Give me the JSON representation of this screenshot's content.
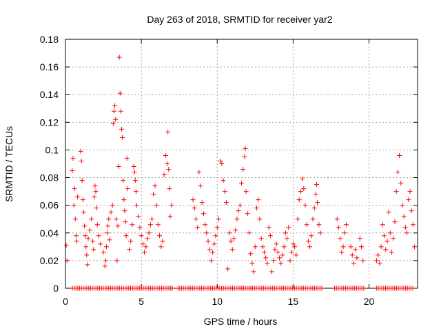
{
  "chart_data": {
    "type": "scatter",
    "title": "Day 263 of 2018, SRMTID for receiver yar2",
    "xlabel": "GPS time / hours",
    "ylabel": "SRMTID / TECUs",
    "xlim": [
      0,
      23.2
    ],
    "ylim": [
      0,
      0.18
    ],
    "xticks": [
      0,
      5,
      10,
      15,
      20
    ],
    "xtick_labels": [
      "0",
      "5",
      "10",
      "15",
      "20"
    ],
    "yticks": [
      0,
      0.02,
      0.04,
      0.06,
      0.08,
      0.1,
      0.12,
      0.14,
      0.16,
      0.18
    ],
    "ytick_labels": [
      "0",
      "0.02",
      "0.04",
      "0.06",
      "0.08",
      "0.1",
      "0.12",
      "0.14",
      "0.16",
      "0.18"
    ],
    "grid": true,
    "marker": "+",
    "color": "#ff0000",
    "series": [
      {
        "name": "SRMTID",
        "points": [
          [
            0.05,
            0.031
          ],
          [
            0.1,
            0.02
          ],
          [
            0.45,
            0.085
          ],
          [
            0.5,
            0.094
          ],
          [
            0.55,
            0.06
          ],
          [
            0.6,
            0.072
          ],
          [
            0.65,
            0.05
          ],
          [
            0.7,
            0.038
          ],
          [
            0.75,
            0.034
          ],
          [
            0.8,
            0.066
          ],
          [
            1.0,
            0.099
          ],
          [
            1.05,
            0.092
          ],
          [
            1.1,
            0.078
          ],
          [
            1.15,
            0.064
          ],
          [
            1.2,
            0.055
          ],
          [
            1.25,
            0.045
          ],
          [
            1.3,
            0.038
          ],
          [
            1.35,
            0.03
          ],
          [
            1.4,
            0.024
          ],
          [
            1.45,
            0.017
          ],
          [
            1.5,
            0.036
          ],
          [
            1.6,
            0.042
          ],
          [
            1.7,
            0.05
          ],
          [
            1.8,
            0.034
          ],
          [
            1.85,
            0.028
          ],
          [
            1.9,
            0.066
          ],
          [
            1.95,
            0.074
          ],
          [
            2.0,
            0.07
          ],
          [
            2.05,
            0.058
          ],
          [
            2.1,
            0.046
          ],
          [
            2.2,
            0.038
          ],
          [
            2.3,
            0.032
          ],
          [
            2.5,
            0.026
          ],
          [
            2.6,
            0.016
          ],
          [
            2.65,
            0.02
          ],
          [
            2.7,
            0.03
          ],
          [
            2.75,
            0.04
          ],
          [
            2.8,
            0.045
          ],
          [
            2.85,
            0.05
          ],
          [
            2.9,
            0.035
          ],
          [
            3.0,
            0.055
          ],
          [
            3.1,
            0.06
          ],
          [
            3.15,
            0.119
          ],
          [
            3.2,
            0.128
          ],
          [
            3.25,
            0.132
          ],
          [
            3.3,
            0.122
          ],
          [
            3.35,
            0.05
          ],
          [
            3.4,
            0.02
          ],
          [
            3.45,
            0.045
          ],
          [
            3.5,
            0.088
          ],
          [
            3.55,
            0.167
          ],
          [
            3.6,
            0.141
          ],
          [
            3.65,
            0.128
          ],
          [
            3.7,
            0.115
          ],
          [
            3.75,
            0.109
          ],
          [
            3.8,
            0.078
          ],
          [
            3.85,
            0.064
          ],
          [
            3.9,
            0.056
          ],
          [
            3.95,
            0.048
          ],
          [
            4.0,
            0.038
          ],
          [
            4.05,
            0.094
          ],
          [
            4.1,
            0.072
          ],
          [
            4.2,
            0.028
          ],
          [
            4.3,
            0.034
          ],
          [
            4.4,
            0.046
          ],
          [
            4.5,
            0.088
          ],
          [
            4.55,
            0.084
          ],
          [
            4.6,
            0.078
          ],
          [
            4.65,
            0.07
          ],
          [
            4.7,
            0.06
          ],
          [
            4.8,
            0.052
          ],
          [
            4.9,
            0.044
          ],
          [
            5.0,
            0.038
          ],
          [
            5.1,
            0.032
          ],
          [
            5.2,
            0.026
          ],
          [
            5.3,
            0.03
          ],
          [
            5.4,
            0.036
          ],
          [
            5.5,
            0.04
          ],
          [
            5.6,
            0.046
          ],
          [
            5.7,
            0.05
          ],
          [
            5.8,
            0.068
          ],
          [
            5.9,
            0.074
          ],
          [
            6.0,
            0.06
          ],
          [
            6.1,
            0.046
          ],
          [
            6.2,
            0.038
          ],
          [
            6.3,
            0.03
          ],
          [
            6.4,
            0.034
          ],
          [
            6.5,
            0.082
          ],
          [
            6.6,
            0.096
          ],
          [
            6.7,
            0.09
          ],
          [
            6.75,
            0.113
          ],
          [
            6.8,
            0.086
          ],
          [
            6.85,
            0.072
          ],
          [
            6.9,
            0.052
          ],
          [
            7.0,
            0.06
          ],
          [
            8.4,
            0.064
          ],
          [
            8.5,
            0.058
          ],
          [
            8.6,
            0.05
          ],
          [
            8.7,
            0.044
          ],
          [
            8.8,
            0.084
          ],
          [
            8.9,
            0.074
          ],
          [
            9.0,
            0.062
          ],
          [
            9.1,
            0.054
          ],
          [
            9.2,
            0.046
          ],
          [
            9.3,
            0.04
          ],
          [
            9.4,
            0.034
          ],
          [
            9.5,
            0.028
          ],
          [
            9.6,
            0.02
          ],
          [
            9.7,
            0.026
          ],
          [
            9.8,
            0.032
          ],
          [
            9.9,
            0.038
          ],
          [
            10.0,
            0.044
          ],
          [
            10.1,
            0.05
          ],
          [
            10.2,
            0.092
          ],
          [
            10.3,
            0.09
          ],
          [
            10.4,
            0.078
          ],
          [
            10.5,
            0.07
          ],
          [
            10.6,
            0.062
          ],
          [
            10.7,
            0.014
          ],
          [
            10.8,
            0.04
          ],
          [
            10.9,
            0.034
          ],
          [
            11.0,
            0.028
          ],
          [
            11.1,
            0.036
          ],
          [
            11.2,
            0.042
          ],
          [
            11.3,
            0.05
          ],
          [
            11.4,
            0.056
          ],
          [
            11.5,
            0.06
          ],
          [
            11.6,
            0.076
          ],
          [
            11.7,
            0.086
          ],
          [
            11.8,
            0.095
          ],
          [
            11.85,
            0.101
          ],
          [
            11.9,
            0.07
          ],
          [
            12.0,
            0.054
          ],
          [
            12.1,
            0.04
          ],
          [
            12.2,
            0.025
          ],
          [
            12.3,
            0.018
          ],
          [
            12.4,
            0.012
          ],
          [
            12.5,
            0.03
          ],
          [
            12.6,
            0.058
          ],
          [
            12.7,
            0.064
          ],
          [
            12.8,
            0.05
          ],
          [
            12.9,
            0.036
          ],
          [
            13.0,
            0.03
          ],
          [
            13.1,
            0.026
          ],
          [
            13.2,
            0.022
          ],
          [
            13.3,
            0.018
          ],
          [
            13.4,
            0.044
          ],
          [
            13.5,
            0.038
          ],
          [
            13.6,
            0.012
          ],
          [
            13.7,
            0.02
          ],
          [
            13.8,
            0.028
          ],
          [
            13.9,
            0.032
          ],
          [
            14.0,
            0.026
          ],
          [
            14.1,
            0.022
          ],
          [
            14.2,
            0.018
          ],
          [
            14.3,
            0.024
          ],
          [
            14.4,
            0.03
          ],
          [
            14.5,
            0.04
          ],
          [
            14.6,
            0.036
          ],
          [
            14.7,
            0.044
          ],
          [
            14.8,
            0.02
          ],
          [
            14.9,
            0.026
          ],
          [
            15.0,
            0.032
          ],
          [
            15.1,
            0.03
          ],
          [
            15.2,
            0.024
          ],
          [
            15.3,
            0.05
          ],
          [
            15.4,
            0.064
          ],
          [
            15.5,
            0.07
          ],
          [
            15.6,
            0.079
          ],
          [
            15.7,
            0.072
          ],
          [
            15.8,
            0.06
          ],
          [
            15.9,
            0.046
          ],
          [
            16.0,
            0.034
          ],
          [
            16.1,
            0.03
          ],
          [
            16.2,
            0.038
          ],
          [
            16.3,
            0.05
          ],
          [
            16.4,
            0.058
          ],
          [
            16.5,
            0.068
          ],
          [
            16.55,
            0.075
          ],
          [
            16.6,
            0.062
          ],
          [
            16.7,
            0.046
          ],
          [
            16.8,
            0.04
          ],
          [
            17.9,
            0.05
          ],
          [
            18.0,
            0.044
          ],
          [
            18.1,
            0.036
          ],
          [
            18.2,
            0.026
          ],
          [
            18.3,
            0.03
          ],
          [
            18.4,
            0.04
          ],
          [
            18.5,
            0.046
          ],
          [
            18.8,
            0.03
          ],
          [
            18.9,
            0.024
          ],
          [
            19.0,
            0.018
          ],
          [
            19.1,
            0.028
          ],
          [
            19.2,
            0.022
          ],
          [
            19.4,
            0.036
          ],
          [
            19.5,
            0.03
          ],
          [
            19.6,
            0.02
          ],
          [
            20.5,
            0.02
          ],
          [
            20.6,
            0.024
          ],
          [
            20.7,
            0.018
          ],
          [
            20.8,
            0.03
          ],
          [
            20.9,
            0.046
          ],
          [
            21.0,
            0.038
          ],
          [
            21.1,
            0.028
          ],
          [
            21.2,
            0.034
          ],
          [
            21.3,
            0.055
          ],
          [
            21.4,
            0.04
          ],
          [
            21.5,
            0.026
          ],
          [
            21.6,
            0.036
          ],
          [
            21.7,
            0.048
          ],
          [
            21.8,
            0.07
          ],
          [
            21.9,
            0.084
          ],
          [
            22.0,
            0.096
          ],
          [
            22.1,
            0.076
          ],
          [
            22.2,
            0.06
          ],
          [
            22.3,
            0.052
          ],
          [
            22.4,
            0.044
          ],
          [
            22.5,
            0.04
          ],
          [
            22.6,
            0.064
          ],
          [
            22.7,
            0.07
          ],
          [
            22.8,
            0.056
          ],
          [
            22.9,
            0.046
          ],
          [
            23.0,
            0.03
          ]
        ]
      }
    ]
  }
}
